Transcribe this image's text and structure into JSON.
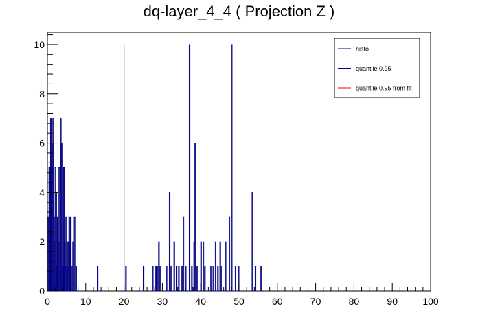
{
  "chart_data": {
    "type": "bar",
    "title": "dq-layer_4_4 ( Projection Z )",
    "xlabel": "",
    "ylabel": "",
    "xlim": [
      0,
      100
    ],
    "ylim": [
      0,
      10.5
    ],
    "xticks": [
      "0",
      "10",
      "20",
      "30",
      "40",
      "50",
      "60",
      "70",
      "80",
      "90",
      "100"
    ],
    "yticks": [
      "0",
      "2",
      "4",
      "6",
      "8",
      "10"
    ],
    "grid": false,
    "legend_position": "top-right",
    "legend": [
      {
        "label": "histo",
        "color": "#000080"
      },
      {
        "label": "quantile 0.95",
        "color": "#000080"
      },
      {
        "label": "quantile 0.95 from fit",
        "color": "#ff0000"
      }
    ],
    "series": [
      {
        "name": "histo",
        "color": "#000080",
        "bins": [
          [
            0.2,
            3
          ],
          [
            0.4,
            5
          ],
          [
            0.6,
            5
          ],
          [
            0.8,
            7
          ],
          [
            1.0,
            5
          ],
          [
            1.2,
            6
          ],
          [
            1.4,
            7
          ],
          [
            1.6,
            3
          ],
          [
            1.8,
            2
          ],
          [
            2.0,
            5
          ],
          [
            2.2,
            4
          ],
          [
            2.4,
            1
          ],
          [
            2.6,
            3
          ],
          [
            2.8,
            2
          ],
          [
            3.0,
            5
          ],
          [
            3.2,
            1
          ],
          [
            3.4,
            7
          ],
          [
            3.6,
            6
          ],
          [
            3.8,
            6
          ],
          [
            4.0,
            1
          ],
          [
            4.2,
            5
          ],
          [
            4.4,
            2
          ],
          [
            4.6,
            1
          ],
          [
            4.8,
            3
          ],
          [
            5.0,
            2
          ],
          [
            5.2,
            1
          ],
          [
            5.4,
            2
          ],
          [
            5.6,
            3
          ],
          [
            5.8,
            2
          ],
          [
            6.0,
            3
          ],
          [
            6.4,
            1
          ],
          [
            6.6,
            2
          ],
          [
            7.0,
            3
          ],
          [
            7.4,
            1
          ],
          [
            13.0,
            1
          ],
          [
            20.4,
            1
          ],
          [
            25.0,
            1
          ],
          [
            27.4,
            1
          ],
          [
            28.2,
            1
          ],
          [
            28.6,
            1
          ],
          [
            29.0,
            2
          ],
          [
            29.4,
            1
          ],
          [
            31.0,
            1
          ],
          [
            31.8,
            4
          ],
          [
            32.2,
            1
          ],
          [
            33.0,
            2
          ],
          [
            33.6,
            1
          ],
          [
            34.2,
            1
          ],
          [
            35.0,
            1
          ],
          [
            35.4,
            3
          ],
          [
            36.0,
            1
          ],
          [
            37.0,
            10
          ],
          [
            37.6,
            1
          ],
          [
            38.2,
            2
          ],
          [
            38.4,
            6
          ],
          [
            39.0,
            1
          ],
          [
            40.0,
            2
          ],
          [
            40.6,
            2
          ],
          [
            41.0,
            1
          ],
          [
            42.6,
            1
          ],
          [
            43.2,
            1
          ],
          [
            43.8,
            2
          ],
          [
            44.4,
            1
          ],
          [
            45.0,
            2
          ],
          [
            45.2,
            1
          ],
          [
            46.4,
            2
          ],
          [
            47.4,
            3
          ],
          [
            48.0,
            10
          ],
          [
            49.0,
            1
          ],
          [
            49.8,
            1
          ],
          [
            53.4,
            4
          ],
          [
            54.2,
            1
          ],
          [
            55.6,
            1
          ]
        ]
      }
    ],
    "markers": [
      {
        "name": "quantile 0.95",
        "x": 20.0,
        "y": 10,
        "color": "#000080"
      },
      {
        "name": "quantile 0.95 from fit",
        "x": 20.0,
        "y": 10,
        "color": "#ff0000"
      }
    ]
  }
}
